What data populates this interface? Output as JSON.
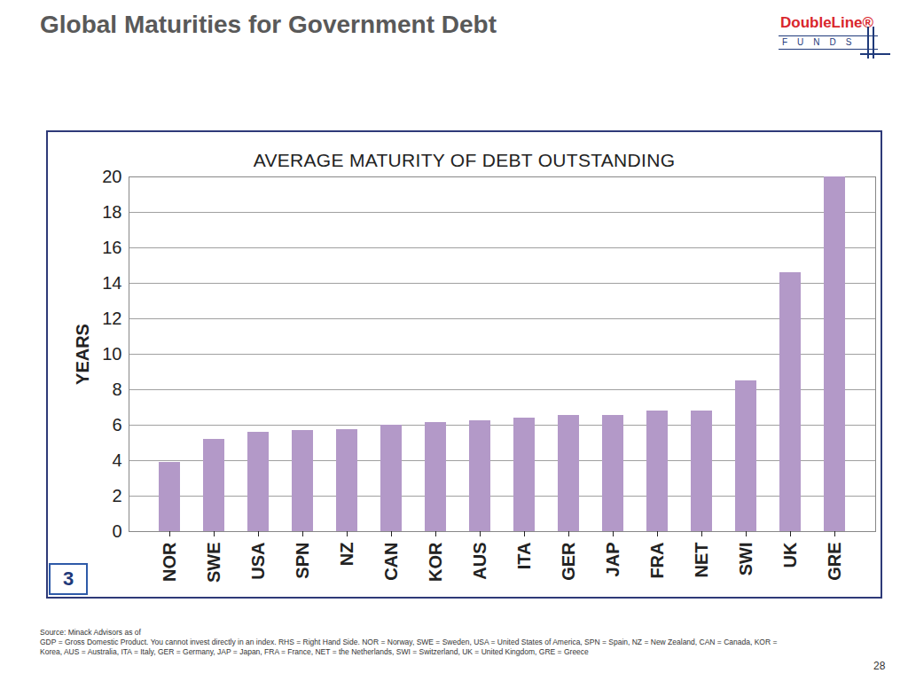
{
  "header": {
    "title": "Global Maturities for Government Debt",
    "logo": {
      "name": "DoubleLine®",
      "sub": "FUNDS"
    }
  },
  "chart_data": {
    "type": "bar",
    "title": "AVERAGE MATURITY OF DEBT OUTSTANDING",
    "y_label": "YEARS",
    "badge": "3",
    "categories": [
      "NOR",
      "SWE",
      "USA",
      "SPN",
      "NZ",
      "CAN",
      "KOR",
      "AUS",
      "ITA",
      "GER",
      "JAP",
      "FRA",
      "NET",
      "SWI",
      "UK",
      "GRE"
    ],
    "values": [
      3.9,
      5.2,
      5.6,
      5.7,
      5.75,
      6.0,
      6.15,
      6.25,
      6.4,
      6.55,
      6.55,
      6.8,
      6.8,
      8.5,
      14.6,
      20.0
    ],
    "color": "#b399c8",
    "ylim": [
      0,
      20
    ],
    "yticks": [
      0,
      2,
      4,
      6,
      8,
      10,
      12,
      14,
      16,
      18,
      20
    ],
    "grid": true
  },
  "footer": {
    "notes": [
      "Source: Minack Advisors as of",
      "GDP = Gross Domestic Product. You cannot invest directly in an index. RHS = Right Hand Side. NOR = Norway, SWE = Sweden, USA = United States of America, SPN = Spain, NZ = New Zealand, CAN = Canada, KOR = Korea, AUS = Australia, ITA = Italy, GER = Germany, JAP = Japan, FRA = France, NET = the Netherlands, SWI = Switzerland, UK = United Kingdom, GRE = Greece"
    ],
    "page": "28"
  }
}
